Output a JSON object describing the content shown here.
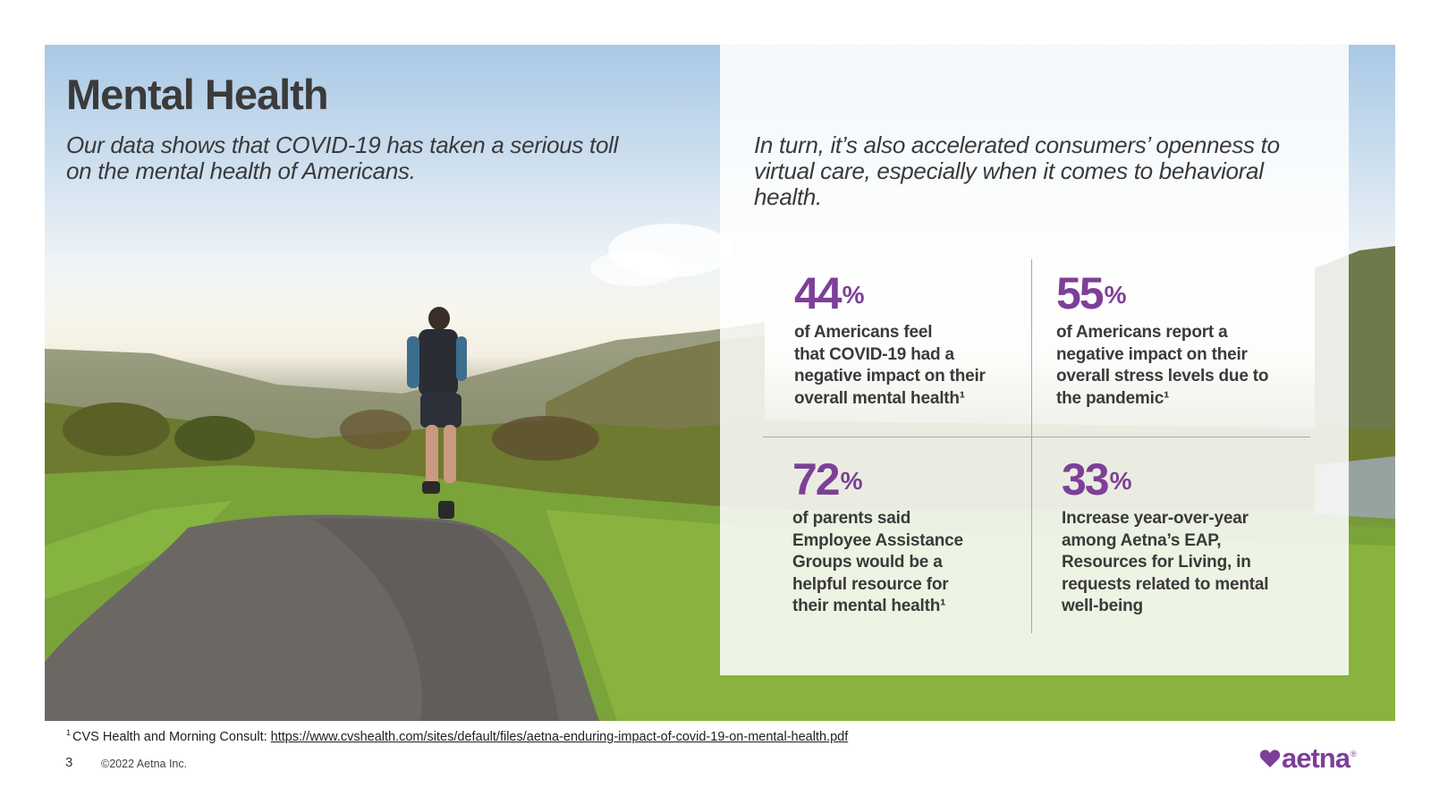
{
  "slide": {
    "title": "Mental Health",
    "intro_left": "Our data shows that COVID-19 has taken a serious toll on the mental health of Americans.",
    "intro_right": "In turn, it’s also accelerated consumers’ openness to virtual care, especially when it comes to behavioral health."
  },
  "stats": [
    {
      "value": "44",
      "unit": "%",
      "text": "of Americans feel\nthat COVID-19 had a\nnegative impact on their\noverall mental health¹"
    },
    {
      "value": "55",
      "unit": "%",
      "text": "of Americans report a\nnegative impact on their\noverall stress levels due to\nthe pandemic¹"
    },
    {
      "value": "72",
      "unit": "%",
      "text": "of parents said\nEmployee Assistance\nGroups would be a\nhelpful resource for\ntheir mental health¹"
    },
    {
      "value": "33",
      "unit": "%",
      "text": "Increase year-over-year\namong Aetna’s EAP,\nResources for Living, in\nrequests related to mental\nwell-being"
    }
  ],
  "footer": {
    "footnote_marker": "1",
    "footnote_source": "CVS Health and Morning Consult: ",
    "footnote_link": "https://www.cvshealth.com/sites/default/files/aetna-enduring-impact-of-covid-19-on-mental-health.pdf",
    "page_number": "3",
    "copyright": "©2022 Aetna Inc.",
    "logo_text": "aetna",
    "logo_mark": "®"
  },
  "colors": {
    "accent": "#7d3f98",
    "text": "#3a3a3a"
  }
}
